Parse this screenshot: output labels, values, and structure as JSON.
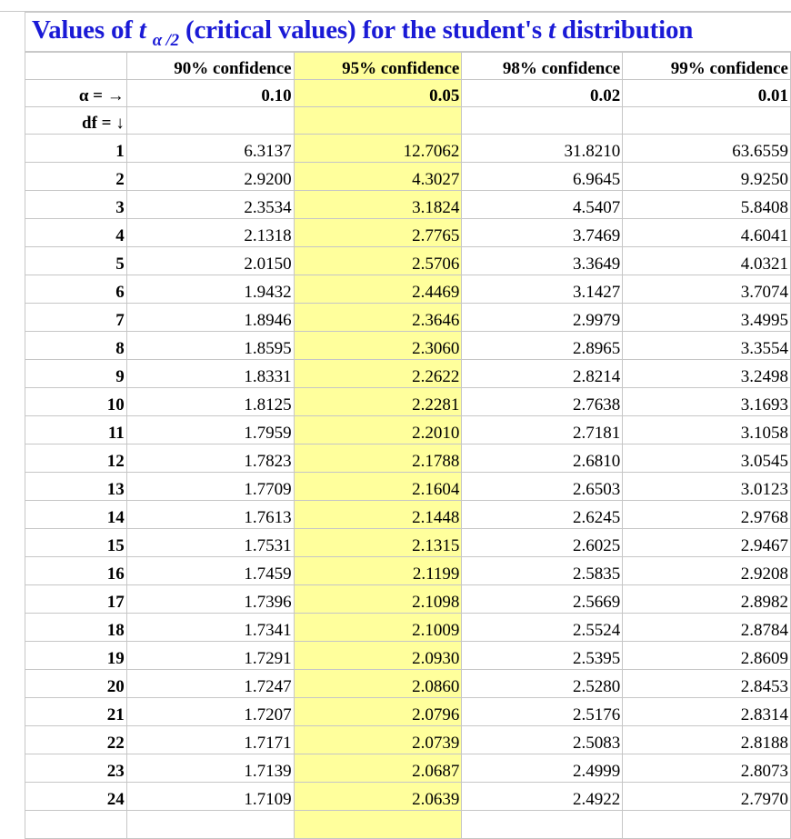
{
  "title": {
    "prefix": "Values of ",
    "t": "t",
    "subscript": "α /2",
    "middle": " (critical values) for the student's ",
    "t2": "t",
    "suffix": " distribution"
  },
  "header": {
    "confidence": [
      "90% confidence",
      "95% confidence",
      "98% confidence",
      "99% confidence"
    ],
    "alpha_label": "α = →",
    "alpha_values": [
      "0.10",
      "0.05",
      "0.02",
      "0.01"
    ],
    "df_label": "df = ↓"
  },
  "rows": [
    {
      "df": "1",
      "v": [
        "6.3137",
        "12.7062",
        "31.8210",
        "63.6559"
      ]
    },
    {
      "df": "2",
      "v": [
        "2.9200",
        "4.3027",
        "6.9645",
        "9.9250"
      ]
    },
    {
      "df": "3",
      "v": [
        "2.3534",
        "3.1824",
        "4.5407",
        "5.8408"
      ]
    },
    {
      "df": "4",
      "v": [
        "2.1318",
        "2.7765",
        "3.7469",
        "4.6041"
      ]
    },
    {
      "df": "5",
      "v": [
        "2.0150",
        "2.5706",
        "3.3649",
        "4.0321"
      ]
    },
    {
      "df": "6",
      "v": [
        "1.9432",
        "2.4469",
        "3.1427",
        "3.7074"
      ]
    },
    {
      "df": "7",
      "v": [
        "1.8946",
        "2.3646",
        "2.9979",
        "3.4995"
      ]
    },
    {
      "df": "8",
      "v": [
        "1.8595",
        "2.3060",
        "2.8965",
        "3.3554"
      ]
    },
    {
      "df": "9",
      "v": [
        "1.8331",
        "2.2622",
        "2.8214",
        "3.2498"
      ]
    },
    {
      "df": "10",
      "v": [
        "1.8125",
        "2.2281",
        "2.7638",
        "3.1693"
      ]
    },
    {
      "df": "11",
      "v": [
        "1.7959",
        "2.2010",
        "2.7181",
        "3.1058"
      ]
    },
    {
      "df": "12",
      "v": [
        "1.7823",
        "2.1788",
        "2.6810",
        "3.0545"
      ]
    },
    {
      "df": "13",
      "v": [
        "1.7709",
        "2.1604",
        "2.6503",
        "3.0123"
      ]
    },
    {
      "df": "14",
      "v": [
        "1.7613",
        "2.1448",
        "2.6245",
        "2.9768"
      ]
    },
    {
      "df": "15",
      "v": [
        "1.7531",
        "2.1315",
        "2.6025",
        "2.9467"
      ]
    },
    {
      "df": "16",
      "v": [
        "1.7459",
        "2.1199",
        "2.5835",
        "2.9208"
      ]
    },
    {
      "df": "17",
      "v": [
        "1.7396",
        "2.1098",
        "2.5669",
        "2.8982"
      ]
    },
    {
      "df": "18",
      "v": [
        "1.7341",
        "2.1009",
        "2.5524",
        "2.8784"
      ]
    },
    {
      "df": "19",
      "v": [
        "1.7291",
        "2.0930",
        "2.5395",
        "2.8609"
      ]
    },
    {
      "df": "20",
      "v": [
        "1.7247",
        "2.0860",
        "2.5280",
        "2.8453"
      ]
    },
    {
      "df": "21",
      "v": [
        "1.7207",
        "2.0796",
        "2.5176",
        "2.8314"
      ]
    },
    {
      "df": "22",
      "v": [
        "1.7171",
        "2.0739",
        "2.5083",
        "2.8188"
      ]
    },
    {
      "df": "23",
      "v": [
        "1.7139",
        "2.0687",
        "2.4999",
        "2.8073"
      ]
    },
    {
      "df": "24",
      "v": [
        "1.7109",
        "2.0639",
        "2.4922",
        "2.7970"
      ]
    }
  ],
  "colors": {
    "title": "#1a1ad6",
    "confidence": "#8b1010",
    "alpha": "#1a1ad6",
    "df": "#0a7a14",
    "highlight": "#ffff9c"
  }
}
